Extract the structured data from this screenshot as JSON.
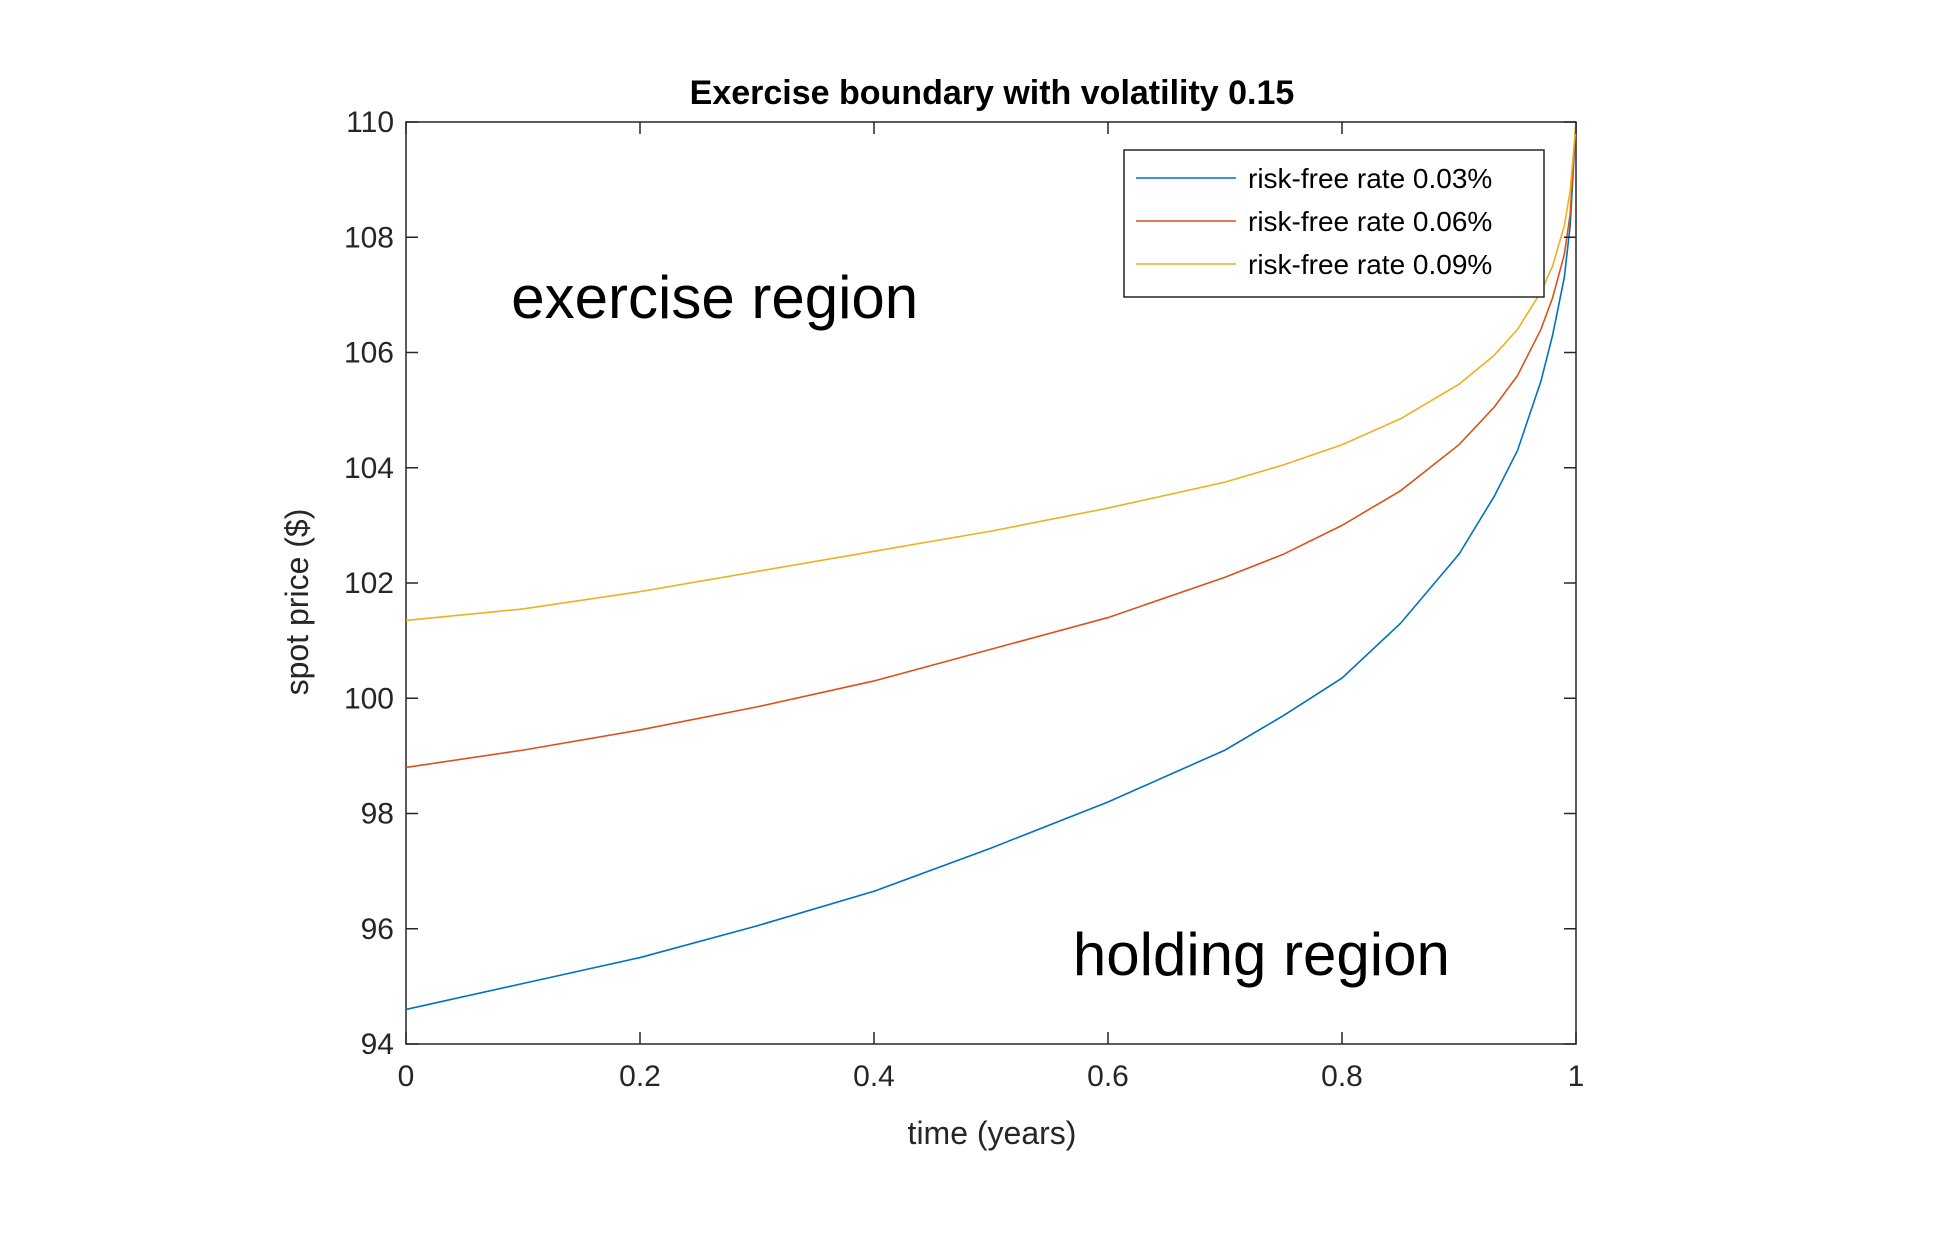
{
  "chart_data": {
    "type": "line",
    "title": "Exercise boundary with volatility 0.15",
    "xlabel": "time (years)",
    "ylabel": "spot price ($)",
    "xlim": [
      0,
      1
    ],
    "ylim": [
      94,
      110
    ],
    "xticks": [
      0,
      0.2,
      0.4,
      0.6,
      0.8,
      1
    ],
    "xtick_labels": [
      "0",
      "0.2",
      "0.4",
      "0.6",
      "0.8",
      "1"
    ],
    "yticks": [
      94,
      96,
      98,
      100,
      102,
      104,
      106,
      108,
      110
    ],
    "ytick_labels": [
      "94",
      "96",
      "98",
      "100",
      "102",
      "104",
      "106",
      "108",
      "110"
    ],
    "grid": false,
    "legend_position": "top-right",
    "annotations": [
      {
        "text": "exercise region",
        "x": 0.09,
        "y": 106.6
      },
      {
        "text": "holding region",
        "x": 0.57,
        "y": 95.2
      }
    ],
    "series": [
      {
        "name": "risk-free rate 0.03%",
        "color": "#0072BD",
        "x": [
          0,
          0.1,
          0.2,
          0.3,
          0.4,
          0.5,
          0.6,
          0.7,
          0.75,
          0.8,
          0.85,
          0.9,
          0.93,
          0.95,
          0.97,
          0.98,
          0.99,
          0.995,
          1.0
        ],
        "y": [
          94.6,
          95.05,
          95.5,
          96.05,
          96.65,
          97.4,
          98.2,
          99.1,
          99.7,
          100.35,
          101.3,
          102.5,
          103.5,
          104.3,
          105.5,
          106.3,
          107.3,
          108.2,
          110
        ]
      },
      {
        "name": "risk-free rate 0.06%",
        "color": "#D95319",
        "x": [
          0,
          0.1,
          0.2,
          0.3,
          0.4,
          0.5,
          0.6,
          0.7,
          0.75,
          0.8,
          0.85,
          0.9,
          0.93,
          0.95,
          0.97,
          0.98,
          0.99,
          0.995,
          1.0
        ],
        "y": [
          98.8,
          99.1,
          99.45,
          99.85,
          100.3,
          100.85,
          101.4,
          102.1,
          102.5,
          103.0,
          103.6,
          104.4,
          105.05,
          105.6,
          106.4,
          106.95,
          107.7,
          108.4,
          110
        ]
      },
      {
        "name": "risk-free rate 0.09%",
        "color": "#EDB120",
        "x": [
          0,
          0.1,
          0.2,
          0.3,
          0.4,
          0.5,
          0.6,
          0.7,
          0.75,
          0.8,
          0.85,
          0.9,
          0.93,
          0.95,
          0.97,
          0.98,
          0.99,
          0.995,
          1.0
        ],
        "y": [
          101.35,
          101.55,
          101.85,
          102.2,
          102.55,
          102.9,
          103.3,
          103.75,
          104.05,
          104.4,
          104.85,
          105.45,
          105.95,
          106.4,
          107.05,
          107.5,
          108.2,
          108.8,
          110
        ]
      }
    ]
  }
}
